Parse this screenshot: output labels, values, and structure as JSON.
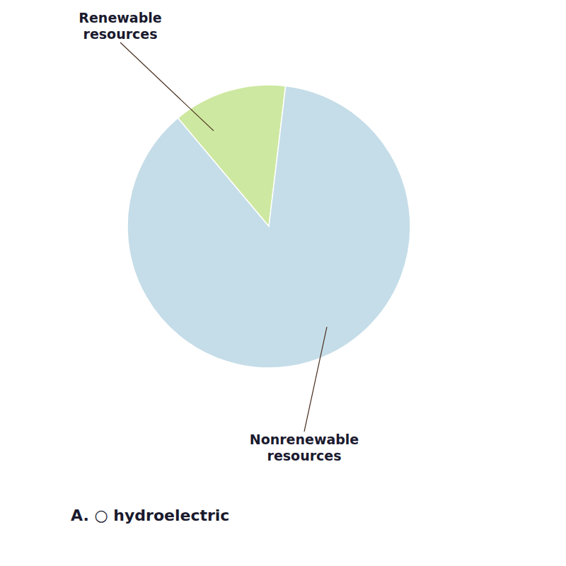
{
  "chart_data": {
    "type": "pie",
    "categories": [
      "Renewable\nresources",
      "Nonrenewable\nresources"
    ],
    "values": [
      13,
      87
    ],
    "colors": [
      "#cde8a0",
      "#c5dde8"
    ],
    "annotations": [
      "A. ○ hydroelectric"
    ]
  }
}
